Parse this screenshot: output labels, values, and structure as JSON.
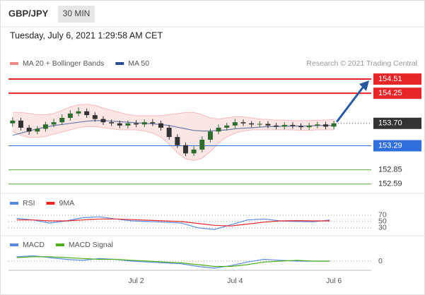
{
  "header": {
    "symbol": "GBP/JPY",
    "timeframe": "30 MIN",
    "datetime": "Tuesday, July 6, 2021 1:29:58 AM CET",
    "copyright": "Research © 2021 Trading Central"
  },
  "chart_data": [
    {
      "type": "candlestick",
      "categories": [
        null,
        null,
        null,
        null,
        null,
        null,
        null,
        null,
        null,
        null,
        null,
        null,
        null,
        null,
        null,
        "Jul 2",
        null,
        null,
        null,
        null,
        null,
        null,
        null,
        null,
        null,
        null,
        null,
        "Jul 4",
        null,
        null,
        null,
        null,
        null,
        null,
        null,
        null,
        null,
        null,
        null,
        "Jul 6"
      ],
      "open": [
        153.7,
        153.75,
        153.62,
        153.55,
        153.6,
        153.68,
        153.72,
        153.8,
        153.88,
        153.92,
        153.85,
        153.78,
        153.72,
        153.7,
        153.66,
        153.7,
        153.68,
        153.72,
        153.7,
        153.62,
        153.45,
        153.3,
        153.15,
        153.22,
        153.4,
        153.55,
        153.62,
        153.66,
        153.72,
        153.7,
        153.68,
        153.69,
        153.66,
        153.64,
        153.67,
        153.65,
        153.63,
        153.66,
        153.68,
        153.64
      ],
      "high": [
        153.81,
        153.8,
        153.67,
        153.65,
        153.73,
        153.78,
        153.86,
        153.94,
        153.99,
        153.97,
        153.9,
        153.83,
        153.77,
        153.75,
        153.75,
        153.76,
        153.77,
        153.78,
        153.75,
        153.67,
        153.5,
        153.35,
        153.28,
        153.46,
        153.6,
        153.68,
        153.71,
        153.78,
        153.77,
        153.74,
        153.74,
        153.74,
        153.71,
        153.72,
        153.72,
        153.7,
        153.71,
        153.73,
        153.73,
        153.75
      ],
      "low": [
        153.64,
        153.57,
        153.49,
        153.5,
        153.55,
        153.63,
        153.67,
        153.75,
        153.83,
        153.8,
        153.73,
        153.67,
        153.65,
        153.61,
        153.61,
        153.63,
        153.63,
        153.65,
        153.57,
        153.4,
        153.25,
        153.1,
        153.1,
        153.17,
        153.35,
        153.5,
        153.57,
        153.61,
        153.65,
        153.63,
        153.63,
        153.61,
        153.59,
        153.59,
        153.6,
        153.58,
        153.58,
        153.61,
        153.59,
        153.59
      ],
      "close": [
        153.75,
        153.62,
        153.55,
        153.6,
        153.68,
        153.72,
        153.8,
        153.88,
        153.92,
        153.85,
        153.78,
        153.72,
        153.7,
        153.66,
        153.7,
        153.68,
        153.72,
        153.7,
        153.62,
        153.45,
        153.3,
        153.15,
        153.22,
        153.4,
        153.55,
        153.62,
        153.66,
        153.72,
        153.7,
        153.68,
        153.69,
        153.66,
        153.64,
        153.67,
        153.65,
        153.63,
        153.66,
        153.68,
        153.64,
        153.7
      ],
      "up_color": "#2e6b2e",
      "down_color": "#333333",
      "series": [
        {
          "name": "MA 20 + Bollinger Bands",
          "color": "#f08a8a",
          "upper": [
            153.9,
            153.9,
            153.88,
            153.86,
            153.86,
            153.88,
            153.94,
            154.0,
            154.04,
            154.05,
            154.03,
            153.98,
            153.94,
            153.9,
            153.86,
            153.84,
            153.84,
            153.84,
            153.84,
            153.86,
            153.88,
            153.9,
            153.9,
            153.86,
            153.8,
            153.78,
            153.8,
            153.82,
            153.82,
            153.8,
            153.78,
            153.77,
            153.76,
            153.76,
            153.75,
            153.75,
            153.75,
            153.76,
            153.76,
            153.77
          ],
          "lower": [
            153.55,
            153.48,
            153.44,
            153.44,
            153.46,
            153.5,
            153.54,
            153.58,
            153.62,
            153.64,
            153.64,
            153.62,
            153.6,
            153.58,
            153.58,
            153.58,
            153.56,
            153.52,
            153.45,
            153.32,
            153.16,
            153.05,
            153.02,
            153.06,
            153.18,
            153.34,
            153.45,
            153.52,
            153.56,
            153.58,
            153.58,
            153.58,
            153.58,
            153.58,
            153.58,
            153.57,
            153.57,
            153.58,
            153.58,
            153.58
          ]
        },
        {
          "name": "MA 50",
          "color": "#2a4d8f",
          "values": [
            153.48,
            153.52,
            153.56,
            153.6,
            153.63,
            153.66,
            153.68,
            153.7,
            153.72,
            153.74,
            153.75,
            153.75,
            153.74,
            153.73,
            153.72,
            153.71,
            153.7,
            153.69,
            153.68,
            153.66,
            153.63,
            153.6,
            153.57,
            153.56,
            153.56,
            153.57,
            153.58,
            153.6,
            153.61,
            153.62,
            153.63,
            153.64,
            153.64,
            153.65,
            153.65,
            153.65,
            153.65,
            153.66,
            153.66,
            153.66
          ]
        }
      ],
      "ylim": [
        152.47,
        154.73
      ],
      "yticks": [
        154.51,
        154.25,
        {
          "value": 153.7,
          "label": "153.70"
        },
        153.29,
        152.85,
        152.59
      ],
      "level_colors": [
        "#e8262a",
        "#e8262a",
        "#333333",
        "#2f6fdc",
        "#5aa83c",
        "#5aa83c"
      ],
      "level_line_styles": [
        "solid",
        "solid",
        "dotted",
        "solid",
        "solid",
        "solid"
      ],
      "level_label_styles": [
        "box",
        "box",
        "box",
        "box",
        "plain",
        "plain"
      ]
    },
    {
      "type": "line",
      "series": [
        {
          "name": "RSI",
          "color": "#5b8be0",
          "values": [
            60,
            55,
            45,
            52,
            62,
            65,
            58,
            52,
            50,
            48,
            45,
            30,
            25,
            40,
            55,
            58,
            52,
            50,
            49,
            55
          ]
        },
        {
          "name": "9MA",
          "color": "#e8262a",
          "values": [
            55,
            55,
            52,
            52,
            55,
            58,
            58,
            56,
            54,
            52,
            50,
            44,
            38,
            36,
            42,
            48,
            52,
            53,
            52,
            52
          ]
        }
      ],
      "ylim": [
        14,
        90
      ],
      "yticks": [
        70,
        50,
        30
      ]
    },
    {
      "type": "line",
      "series": [
        {
          "name": "MACD",
          "color": "#5b8be0",
          "values": [
            0.05,
            0.06,
            0.04,
            0.02,
            0.01,
            0.03,
            0.02,
            0.0,
            -0.01,
            -0.02,
            -0.03,
            -0.06,
            -0.08,
            -0.05,
            -0.01,
            0.02,
            0.01,
            0.0,
            0.0,
            0.0
          ]
        },
        {
          "name": "MACD Signal",
          "color": "#4caf1a",
          "values": [
            0.04,
            0.05,
            0.05,
            0.04,
            0.03,
            0.02,
            0.02,
            0.01,
            0.0,
            -0.01,
            -0.02,
            -0.04,
            -0.06,
            -0.06,
            -0.04,
            -0.01,
            0.0,
            0.01,
            0.0,
            0.0
          ]
        }
      ],
      "ylim": [
        -0.12,
        0.12
      ],
      "yticks": [
        0
      ]
    }
  ]
}
